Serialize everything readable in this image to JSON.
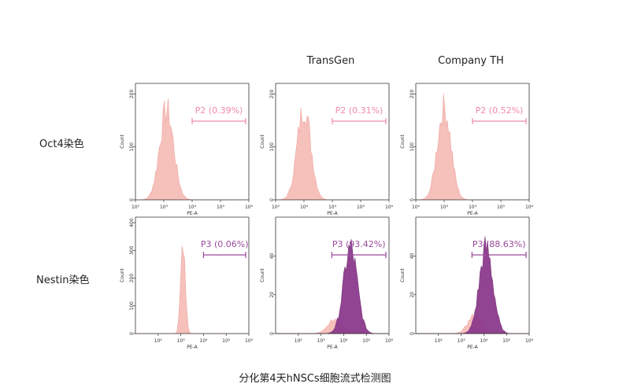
{
  "column_titles": [
    "",
    "TransGen",
    "Company TH"
  ],
  "row_labels": [
    "Oct4染色",
    "Nestin染色"
  ],
  "caption": "分化第4天hNSCs细胞流式检测图",
  "colors": {
    "pink": "#f5b6b0",
    "pink_stroke": "#e88a82",
    "purple": "#8c3a8c",
    "purple_label": "#9b4a9b",
    "pink_label": "#f08aa8",
    "axis": "#333333"
  },
  "chart_data": [
    {
      "type": "area",
      "row": 0,
      "col": 0,
      "xlabel": "PE-A",
      "ylabel": "Count",
      "xscale": "log",
      "xlim": [
        100,
        1000000
      ],
      "xticks": [
        "10²",
        "10³",
        "10⁴",
        "10⁵",
        "10⁶"
      ],
      "ylim": [
        0,
        220
      ],
      "yticks": [
        "0",
        "100",
        "200"
      ],
      "gate_label": "P2 (0.39%)",
      "gate": [
        10000,
        1000000
      ],
      "series": [
        {
          "color": "pink",
          "peak_log": 3.1,
          "sigma": 0.25,
          "peak": 180
        }
      ]
    },
    {
      "type": "area",
      "row": 0,
      "col": 1,
      "xlabel": "PE-A",
      "ylabel": "Count",
      "xscale": "log",
      "xlim": [
        100,
        1000000
      ],
      "xticks": [
        "10²",
        "10³",
        "10⁴",
        "10⁵",
        "10⁶"
      ],
      "ylim": [
        0,
        220
      ],
      "yticks": [
        "0",
        "100",
        "200"
      ],
      "gate_label": "P2 (0.31%)",
      "gate": [
        10000,
        1000000
      ],
      "series": [
        {
          "color": "pink",
          "peak_log": 3.0,
          "sigma": 0.24,
          "peak": 185
        }
      ]
    },
    {
      "type": "area",
      "row": 0,
      "col": 2,
      "xlabel": "PE-A",
      "ylabel": "Count",
      "xscale": "log",
      "xlim": [
        100,
        1000000
      ],
      "xticks": [
        "10²",
        "10³",
        "10⁴",
        "10⁵",
        "10⁶"
      ],
      "ylim": [
        0,
        220
      ],
      "yticks": [
        "0",
        "100",
        "200"
      ],
      "gate_label": "P2 (0.52%)",
      "gate": [
        10000,
        1000000
      ],
      "series": [
        {
          "color": "pink",
          "peak_log": 3.0,
          "sigma": 0.24,
          "peak": 185
        }
      ]
    },
    {
      "type": "area",
      "row": 1,
      "col": 0,
      "xlabel": "PE-A",
      "ylabel": "Count",
      "xscale": "log",
      "xlim": [
        10,
        1000000
      ],
      "xticks": [
        "10²",
        "10³",
        "10⁴",
        "10⁵",
        "10⁶"
      ],
      "ylim": [
        0,
        420
      ],
      "yticks": [
        "0",
        "100",
        "200",
        "300",
        "400"
      ],
      "gate_label": "P3 (0.06%)",
      "gate": [
        10000,
        1000000
      ],
      "series": [
        {
          "color": "pink",
          "peak_log": 3.1,
          "sigma": 0.1,
          "peak": 365
        }
      ]
    },
    {
      "type": "area",
      "row": 1,
      "col": 1,
      "xlabel": "PE-A",
      "ylabel": "Count",
      "xscale": "log",
      "xlim": [
        10,
        1000000
      ],
      "xticks": [
        "10²",
        "10³",
        "10⁴",
        "10⁵",
        "10⁶"
      ],
      "ylim": [
        0,
        60
      ],
      "yticks": [
        "0",
        "20",
        "40"
      ],
      "gate_label": "P3 (93.42%)",
      "gate": [
        3000,
        1000000
      ],
      "series": [
        {
          "color": "pink",
          "peak_log": 3.6,
          "sigma": 0.3,
          "peak": 8
        },
        {
          "color": "purple",
          "peak_log": 4.3,
          "sigma": 0.3,
          "peak": 47
        }
      ]
    },
    {
      "type": "area",
      "row": 1,
      "col": 2,
      "xlabel": "PE-A",
      "ylabel": "Count",
      "xscale": "log",
      "xlim": [
        10,
        1000000
      ],
      "xticks": [
        "10²",
        "10³",
        "10⁴",
        "10⁵",
        "10⁶"
      ],
      "ylim": [
        0,
        60
      ],
      "yticks": [
        "0",
        "20",
        "40"
      ],
      "gate_label": "P3 (88.63%)",
      "gate": [
        3000,
        1000000
      ],
      "series": [
        {
          "color": "pink",
          "peak_log": 3.6,
          "sigma": 0.3,
          "peak": 10
        },
        {
          "color": "purple",
          "peak_log": 4.1,
          "sigma": 0.3,
          "peak": 47
        }
      ]
    }
  ]
}
